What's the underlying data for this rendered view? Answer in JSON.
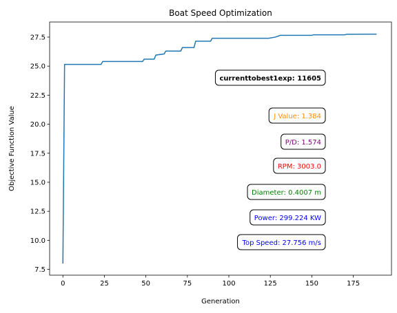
{
  "chart_data": {
    "type": "line",
    "title": "Boat Speed Optimization",
    "xlabel": "Generation",
    "ylabel": "Objective Function Value",
    "xlim": [
      -8,
      198
    ],
    "ylim": [
      7,
      28.8
    ],
    "xticks": [
      0,
      25,
      50,
      75,
      100,
      125,
      150,
      175
    ],
    "yticks": [
      7.5,
      10.0,
      12.5,
      15.0,
      17.5,
      20.0,
      22.5,
      25.0,
      27.5
    ],
    "ytick_labels": [
      "7.5",
      "10.0",
      "12.5",
      "15.0",
      "17.5",
      "20.0",
      "22.5",
      "25.0",
      "27.5"
    ],
    "grid": false,
    "series": [
      {
        "color": "#1f77b4",
        "x": [
          0,
          1,
          23,
          24,
          48,
          49,
          55,
          56,
          61,
          62,
          71,
          72,
          79,
          80,
          89,
          90,
          124,
          128,
          129,
          130,
          131,
          150,
          151,
          170,
          171,
          189
        ],
        "y": [
          8.0,
          25.15,
          25.15,
          25.4,
          25.4,
          25.6,
          25.6,
          25.95,
          26.05,
          26.3,
          26.3,
          26.6,
          26.6,
          27.15,
          27.15,
          27.4,
          27.4,
          27.5,
          27.55,
          27.6,
          27.65,
          27.65,
          27.7,
          27.7,
          27.75,
          27.756
        ]
      }
    ],
    "annotations": [
      {
        "text": "currenttobest1exp: 11605",
        "color": "#000000",
        "bold": true
      },
      {
        "text": "J Value: 1.384",
        "color": "#ff8c00",
        "bold": false
      },
      {
        "text": "P/D: 1.574",
        "color": "#800080",
        "bold": false
      },
      {
        "text": "RPM: 3003.0",
        "color": "#ff0000",
        "bold": false
      },
      {
        "text": "Diameter: 0.4007 m",
        "color": "#008000",
        "bold": false
      },
      {
        "text": "Power: 299.224 KW",
        "color": "#0000ff",
        "bold": false
      },
      {
        "text": "Top Speed: 27.756 m/s",
        "color": "#0000ff",
        "bold": false
      }
    ]
  }
}
